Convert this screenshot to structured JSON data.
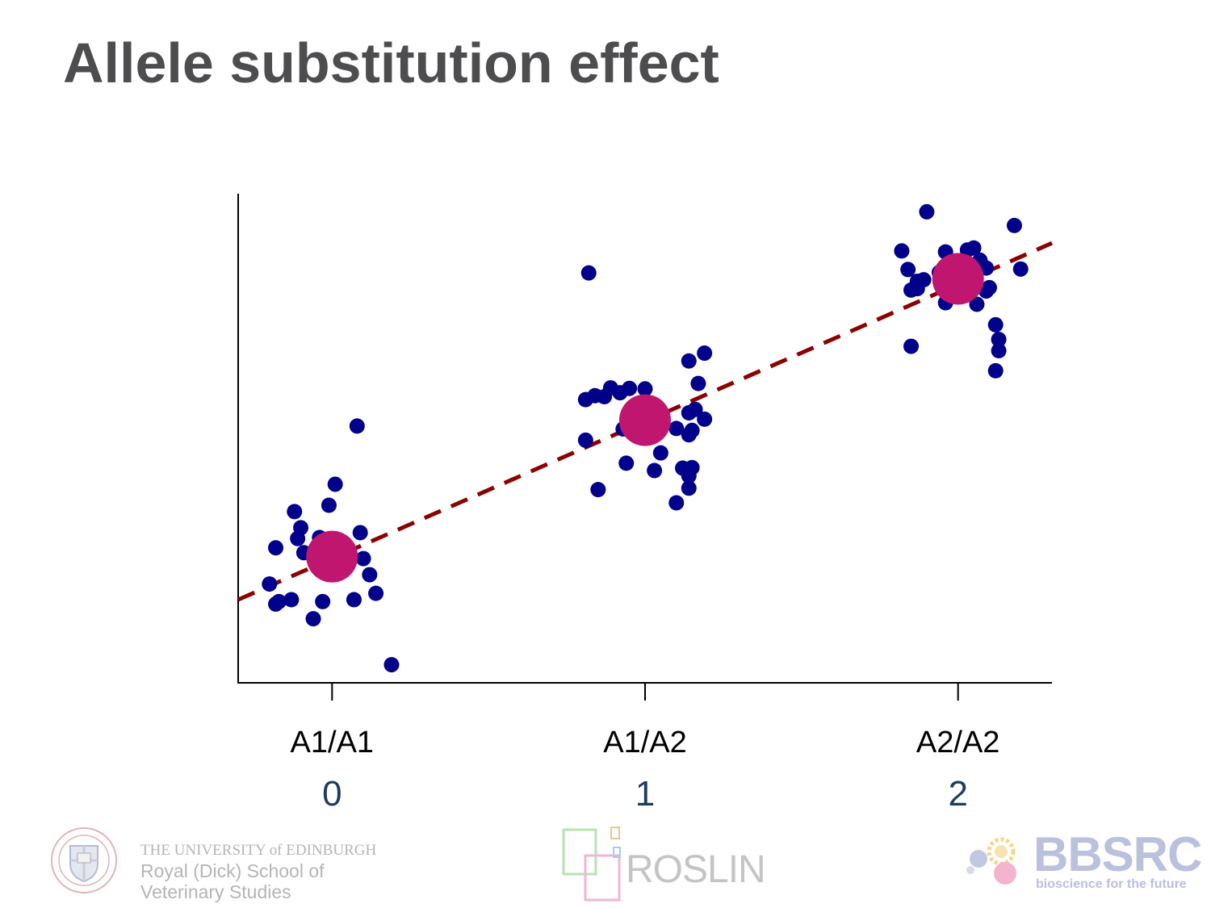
{
  "slide": {
    "title": "Allele substitution effect"
  },
  "colors": {
    "title": "#4d4d4f",
    "points": "#00008b",
    "means": "#c0166f",
    "regression_line": "#8b0000",
    "axis": "#000000",
    "code_labels": "#1f3a5f"
  },
  "chart_data": {
    "type": "scatter",
    "title": "",
    "xlabel": "",
    "ylabel": "",
    "categories": [
      "A1/A1",
      "A1/A2",
      "A2/A2"
    ],
    "codes": [
      "0",
      "1",
      "2"
    ],
    "xlim": [
      -0.3,
      2.3
    ],
    "ylim": [
      0,
      100
    ],
    "grid": false,
    "legend": "none",
    "series": [
      {
        "values": [
          {
            "x": -0.2,
            "y": 20.2
          },
          {
            "x": -0.18,
            "y": 16.1
          },
          {
            "x": -0.17,
            "y": 16.6
          },
          {
            "x": -0.18,
            "y": 27.6
          },
          {
            "x": -0.13,
            "y": 17.0
          },
          {
            "x": -0.12,
            "y": 35.0
          },
          {
            "x": -0.11,
            "y": 29.5
          },
          {
            "x": -0.1,
            "y": 31.7
          },
          {
            "x": -0.09,
            "y": 26.6
          },
          {
            "x": -0.06,
            "y": 13.1
          },
          {
            "x": -0.03,
            "y": 16.6
          },
          {
            "x": -0.04,
            "y": 29.7
          },
          {
            "x": -0.01,
            "y": 36.3
          },
          {
            "x": 0.01,
            "y": 40.6
          },
          {
            "x": 0.07,
            "y": 17.0
          },
          {
            "x": 0.09,
            "y": 30.7
          },
          {
            "x": 0.1,
            "y": 25.4
          },
          {
            "x": 0.12,
            "y": 22.1
          },
          {
            "x": 0.14,
            "y": 18.3
          },
          {
            "x": 0.08,
            "y": 52.5
          },
          {
            "x": 0.19,
            "y": 3.7
          },
          {
            "x": -0.03,
            "y": 27.1
          },
          {
            "x": 0.82,
            "y": 83.8
          },
          {
            "x": 0.81,
            "y": 57.9
          },
          {
            "x": 0.81,
            "y": 49.6
          },
          {
            "x": 0.84,
            "y": 58.7
          },
          {
            "x": 0.85,
            "y": 39.5
          },
          {
            "x": 0.87,
            "y": 58.5
          },
          {
            "x": 0.89,
            "y": 60.3
          },
          {
            "x": 0.92,
            "y": 59.3
          },
          {
            "x": 0.95,
            "y": 60.2
          },
          {
            "x": 0.93,
            "y": 51.9
          },
          {
            "x": 0.94,
            "y": 44.9
          },
          {
            "x": 1.0,
            "y": 60.1
          },
          {
            "x": 1.03,
            "y": 43.4
          },
          {
            "x": 1.05,
            "y": 47.0
          },
          {
            "x": 1.1,
            "y": 36.8
          },
          {
            "x": 1.1,
            "y": 52.0
          },
          {
            "x": 1.12,
            "y": 43.9
          },
          {
            "x": 1.14,
            "y": 39.8
          },
          {
            "x": 1.14,
            "y": 42.3
          },
          {
            "x": 1.15,
            "y": 44.0
          },
          {
            "x": 1.14,
            "y": 55.2
          },
          {
            "x": 1.16,
            "y": 55.9
          },
          {
            "x": 1.14,
            "y": 50.7
          },
          {
            "x": 1.15,
            "y": 51.6
          },
          {
            "x": 1.14,
            "y": 65.8
          },
          {
            "x": 1.17,
            "y": 61.2
          },
          {
            "x": 1.19,
            "y": 67.4
          },
          {
            "x": 1.19,
            "y": 53.9
          },
          {
            "x": 1.82,
            "y": 88.3
          },
          {
            "x": 1.84,
            "y": 84.5
          },
          {
            "x": 1.85,
            "y": 80.3
          },
          {
            "x": 1.87,
            "y": 82.1
          },
          {
            "x": 1.85,
            "y": 68.8
          },
          {
            "x": 1.87,
            "y": 80.6
          },
          {
            "x": 1.89,
            "y": 82.4
          },
          {
            "x": 1.9,
            "y": 96.3
          },
          {
            "x": 1.94,
            "y": 83.9
          },
          {
            "x": 1.96,
            "y": 88.1
          },
          {
            "x": 1.96,
            "y": 77.7
          },
          {
            "x": 2.03,
            "y": 88.5
          },
          {
            "x": 2.05,
            "y": 88.9
          },
          {
            "x": 2.05,
            "y": 82.2
          },
          {
            "x": 2.06,
            "y": 77.4
          },
          {
            "x": 2.07,
            "y": 86.4
          },
          {
            "x": 2.09,
            "y": 80.1
          },
          {
            "x": 2.1,
            "y": 80.8
          },
          {
            "x": 2.09,
            "y": 84.8
          },
          {
            "x": 2.12,
            "y": 73.2
          },
          {
            "x": 2.13,
            "y": 70.2
          },
          {
            "x": 2.13,
            "y": 67.9
          },
          {
            "x": 2.12,
            "y": 63.8
          },
          {
            "x": 2.18,
            "y": 93.5
          },
          {
            "x": 2.2,
            "y": 84.6
          },
          {
            "x": 2.02,
            "y": 82.2
          }
        ]
      },
      {
        "values": [
          {
            "x": 0,
            "y": 25.8
          },
          {
            "x": 1,
            "y": 53.7
          },
          {
            "x": 2,
            "y": 82.6
          }
        ]
      }
    ],
    "regression": {
      "style": "dashed",
      "points": [
        {
          "x": -0.3,
          "y": 17.0
        },
        {
          "x": 2.3,
          "y": 89.9
        }
      ]
    }
  },
  "footer": {
    "edinburgh": {
      "line1": "THE UNIVERSITY of EDINBURGH",
      "line2": "Royal (Dick) School of",
      "line3": "Veterinary Studies"
    },
    "roslin": {
      "name": "ROSLIN"
    },
    "bbsrc": {
      "name": "BBSRC",
      "tagline": "bioscience for the future"
    }
  }
}
